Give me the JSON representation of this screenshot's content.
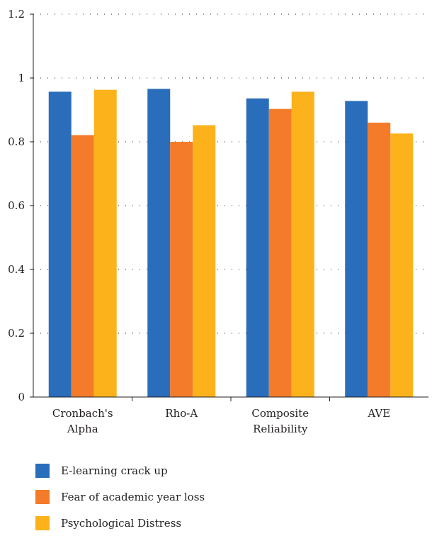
{
  "chart_data": {
    "type": "bar",
    "categories": [
      [
        "Cronbach's",
        "Alpha"
      ],
      [
        "Rho-A"
      ],
      [
        "Composite",
        "Reliability"
      ],
      [
        "AVE"
      ]
    ],
    "series": [
      {
        "name": "E-learning crack up",
        "color": "#2a6ebb",
        "values": [
          0.957,
          0.966,
          0.936,
          0.928
        ]
      },
      {
        "name": "Fear of academic year loss",
        "color": "#f47b2a",
        "values": [
          0.821,
          0.8,
          0.903,
          0.86
        ]
      },
      {
        "name": "Psychological Distress",
        "color": "#fbb21b",
        "values": [
          0.963,
          0.852,
          0.957,
          0.826
        ]
      }
    ],
    "yticks": [
      "0",
      "0.2",
      "0.4",
      "0.6",
      "0.8",
      "1",
      "1.2"
    ],
    "ylim": [
      0,
      1.2
    ],
    "grid": true,
    "legend_position": "bottom-left"
  }
}
